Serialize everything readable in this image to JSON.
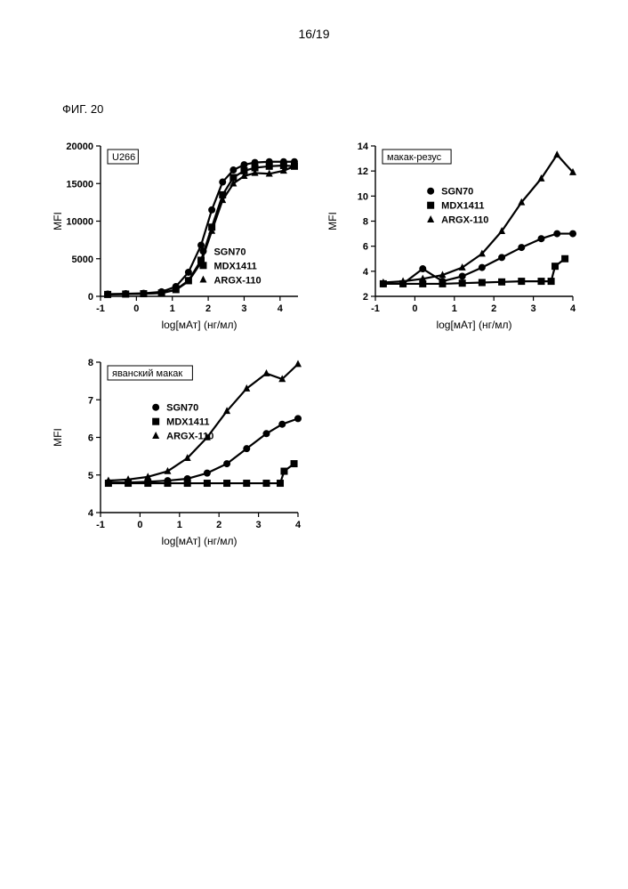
{
  "page_number_text": "16/19",
  "figure_label": "ФИГ. 20",
  "global": {
    "series_names": {
      "sgn70": "SGN70",
      "mdx1411": "MDX1411",
      "argx110": "ARGX-110"
    },
    "series_markers": {
      "sgn70": "circle",
      "mdx1411": "square",
      "argx110": "triangle"
    },
    "axis_xlabel": "log[мАт] (нг/мл)",
    "axis_ylabel": "MFI",
    "line_color": "#000000",
    "marker_fill": "#000000",
    "marker_size": 8,
    "line_width": 2.2,
    "axis_width": 1.4,
    "tick_len": 5,
    "font_family": "Arial",
    "tick_fontsize": 11,
    "label_fontsize": 12,
    "title_fontsize": 11,
    "background": "#ffffff"
  },
  "panels": [
    {
      "id": "u266",
      "title": "U266",
      "title_box": true,
      "xlim": [
        -1,
        4.5
      ],
      "ylim": [
        0,
        20000
      ],
      "xticks": [
        -1,
        0,
        1,
        2,
        3,
        4
      ],
      "yticks": [
        0,
        5000,
        10000,
        15000,
        20000
      ],
      "legend_pos": "inside-br",
      "series": {
        "sgn70": {
          "x": [
            -0.8,
            -0.3,
            0.2,
            0.7,
            1.1,
            1.45,
            1.8,
            2.1,
            2.4,
            2.7,
            3.0,
            3.3,
            3.7,
            4.1,
            4.4
          ],
          "y": [
            300,
            350,
            400,
            600,
            1300,
            3200,
            6800,
            11500,
            15200,
            16800,
            17500,
            17800,
            17900,
            17900,
            17900
          ]
        },
        "mdx1411": {
          "x": [
            -0.8,
            -0.3,
            0.2,
            0.7,
            1.1,
            1.45,
            1.8,
            2.1,
            2.4,
            2.7,
            3.0,
            3.3,
            3.7,
            4.1,
            4.4
          ],
          "y": [
            250,
            300,
            350,
            450,
            900,
            2100,
            4800,
            9200,
            13500,
            15800,
            16700,
            17100,
            17300,
            17400,
            17300
          ]
        },
        "argx110": {
          "x": [
            -0.8,
            -0.3,
            0.2,
            0.7,
            1.1,
            1.45,
            1.8,
            2.1,
            2.4,
            2.7,
            3.0,
            3.3,
            3.7,
            4.1,
            4.4
          ],
          "y": [
            250,
            300,
            330,
            420,
            850,
            2000,
            4500,
            8700,
            12800,
            15000,
            16000,
            16400,
            16300,
            16700,
            17300
          ]
        }
      }
    },
    {
      "id": "rhesus",
      "title": "макак-резус",
      "title_box": true,
      "xlim": [
        -1,
        4
      ],
      "ylim": [
        2,
        14
      ],
      "xticks": [
        -1,
        0,
        1,
        2,
        3,
        4
      ],
      "yticks": [
        2,
        4,
        6,
        8,
        10,
        12,
        14
      ],
      "legend_pos": "inside-mid",
      "series": {
        "sgn70": {
          "x": [
            -0.8,
            -0.3,
            0.2,
            0.7,
            1.2,
            1.7,
            2.2,
            2.7,
            3.2,
            3.6,
            4.0
          ],
          "y": [
            3.0,
            3.0,
            4.2,
            3.2,
            3.6,
            4.3,
            5.1,
            5.9,
            6.6,
            7.0,
            7.0
          ]
        },
        "mdx1411": {
          "x": [
            -0.8,
            -0.3,
            0.2,
            0.7,
            1.2,
            1.7,
            2.2,
            2.7,
            3.2,
            3.45,
            3.55,
            3.8
          ],
          "y": [
            3.0,
            3.0,
            3.0,
            3.0,
            3.05,
            3.1,
            3.15,
            3.2,
            3.2,
            3.2,
            4.4,
            5.0
          ]
        },
        "argx110": {
          "x": [
            -0.8,
            -0.3,
            0.2,
            0.7,
            1.2,
            1.7,
            2.2,
            2.7,
            3.2,
            3.6,
            4.0
          ],
          "y": [
            3.1,
            3.2,
            3.4,
            3.7,
            4.3,
            5.4,
            7.2,
            9.5,
            11.4,
            13.3,
            11.9
          ]
        }
      }
    },
    {
      "id": "cyno",
      "title": "яванский макак",
      "title_box": true,
      "xlim": [
        -1,
        4
      ],
      "ylim": [
        4,
        8
      ],
      "xticks": [
        -1,
        0,
        1,
        2,
        3,
        4
      ],
      "yticks": [
        4,
        5,
        6,
        7,
        8
      ],
      "legend_pos": "inside-mid",
      "series": {
        "sgn70": {
          "x": [
            -0.8,
            -0.3,
            0.2,
            0.7,
            1.2,
            1.7,
            2.2,
            2.7,
            3.2,
            3.6,
            4.0
          ],
          "y": [
            4.8,
            4.8,
            4.82,
            4.85,
            4.9,
            5.05,
            5.3,
            5.7,
            6.1,
            6.35,
            6.5
          ]
        },
        "mdx1411": {
          "x": [
            -0.8,
            -0.3,
            0.2,
            0.7,
            1.2,
            1.7,
            2.2,
            2.7,
            3.2,
            3.55,
            3.65,
            3.9
          ],
          "y": [
            4.78,
            4.78,
            4.78,
            4.78,
            4.78,
            4.78,
            4.78,
            4.78,
            4.78,
            4.78,
            5.1,
            5.3
          ]
        },
        "argx110": {
          "x": [
            -0.8,
            -0.3,
            0.2,
            0.7,
            1.2,
            1.7,
            2.2,
            2.7,
            3.2,
            3.6,
            4.0
          ],
          "y": [
            4.85,
            4.88,
            4.95,
            5.1,
            5.45,
            6.0,
            6.7,
            7.3,
            7.7,
            7.55,
            7.95
          ]
        }
      }
    }
  ]
}
